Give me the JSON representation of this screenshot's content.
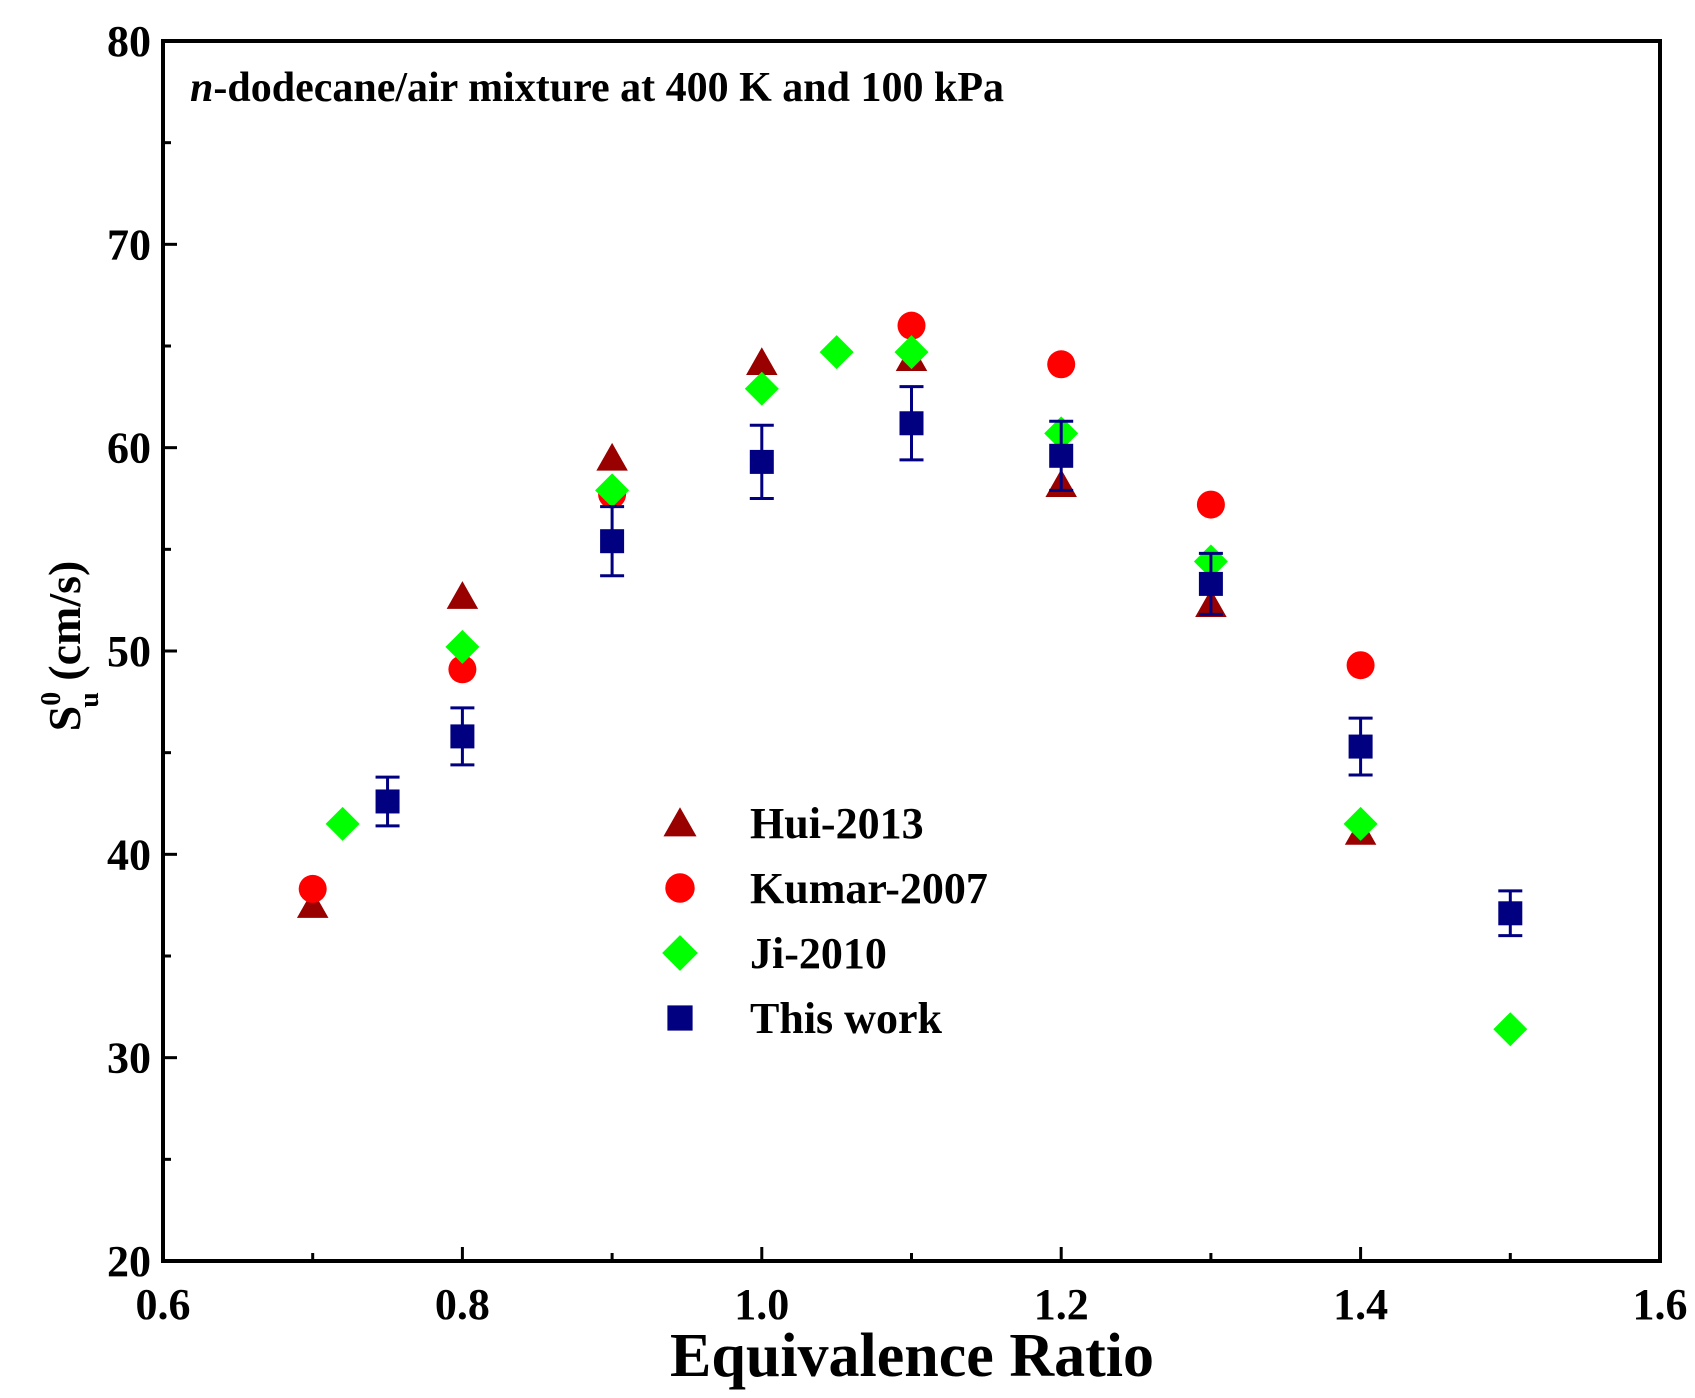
{
  "chart_data": {
    "type": "scatter",
    "title_prefix": "n",
    "title_rest": "-dodecane/air mixture at 400 K and 100 kPa",
    "xlabel": "Equivalence Ratio",
    "ylabel": {
      "main": "S",
      "sup": "0",
      "sub": "u",
      "unit": " (cm/s)"
    },
    "xlim": [
      0.6,
      1.6
    ],
    "ylim": [
      20,
      80
    ],
    "xticks": [
      "0.6",
      "0.8",
      "1.0",
      "1.2",
      "1.4",
      "1.6"
    ],
    "yticks": [
      "20",
      "30",
      "40",
      "50",
      "60",
      "70",
      "80"
    ],
    "grid": false,
    "legend_position": "center-left",
    "series": [
      {
        "name": "Hui-2013",
        "marker": "triangle",
        "color": "#990000",
        "x": [
          0.7,
          0.8,
          0.9,
          1.0,
          1.1,
          1.2,
          1.3,
          1.4
        ],
        "y": [
          37.5,
          52.7,
          59.5,
          64.2,
          64.4,
          58.2,
          52.3,
          41.1
        ]
      },
      {
        "name": "Kumar-2007",
        "marker": "circle",
        "color": "#ff0000",
        "x": [
          0.7,
          0.8,
          0.9,
          1.1,
          1.2,
          1.3,
          1.4
        ],
        "y": [
          38.3,
          49.1,
          57.7,
          66.0,
          64.1,
          57.2,
          49.3
        ]
      },
      {
        "name": "Ji-2010",
        "marker": "diamond",
        "color": "#00ff00",
        "x": [
          0.72,
          0.8,
          0.9,
          1.0,
          1.05,
          1.1,
          1.2,
          1.3,
          1.4,
          1.5
        ],
        "y": [
          41.5,
          50.2,
          57.9,
          62.9,
          64.7,
          64.7,
          60.7,
          54.4,
          41.5,
          31.4
        ]
      },
      {
        "name": "This work",
        "marker": "square",
        "color": "#000080",
        "x": [
          0.75,
          0.8,
          0.9,
          1.0,
          1.1,
          1.2,
          1.3,
          1.4,
          1.5
        ],
        "y": [
          42.6,
          45.8,
          55.4,
          59.3,
          61.2,
          59.6,
          53.3,
          45.3,
          37.1
        ],
        "yerr": [
          1.2,
          1.4,
          1.7,
          1.8,
          1.8,
          1.7,
          1.5,
          1.4,
          1.1
        ]
      }
    ]
  }
}
